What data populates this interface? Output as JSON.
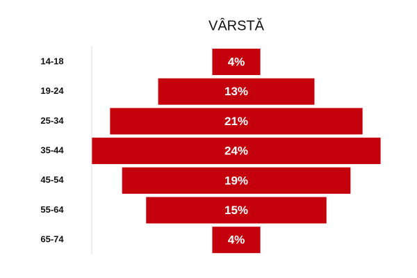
{
  "chart_data": {
    "type": "bar",
    "title": "VÂRSTĂ",
    "categories": [
      "14-18",
      "19-24",
      "25-34",
      "35-44",
      "45-54",
      "55-64",
      "65-74"
    ],
    "values": [
      4,
      13,
      21,
      24,
      19,
      15,
      4
    ],
    "value_labels": [
      "4%",
      "13%",
      "21%",
      "24%",
      "19%",
      "15%",
      "4%"
    ],
    "color": "#c3000b"
  }
}
